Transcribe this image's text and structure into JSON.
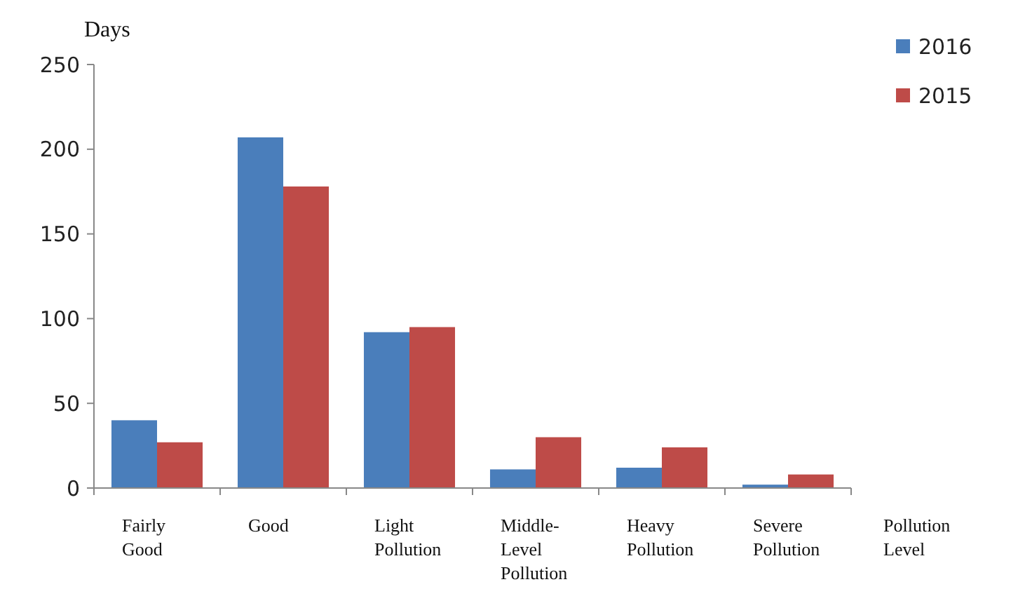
{
  "chart_data": {
    "type": "bar",
    "ylabel": "Days",
    "xlabel": "Pollution Level",
    "categories": [
      "Fairly Good",
      "Good",
      "Light Pollution",
      "Middle-Level Pollution",
      "Heavy Pollution",
      "Severe Pollution"
    ],
    "series": [
      {
        "name": "2016",
        "color": "#4a7ebb",
        "values": [
          40,
          207,
          92,
          11,
          12,
          2
        ]
      },
      {
        "name": "2015",
        "color": "#be4b48",
        "values": [
          27,
          178,
          95,
          30,
          24,
          8
        ]
      }
    ],
    "ylim": [
      0,
      250
    ],
    "yticks": [
      0,
      50,
      100,
      150,
      200,
      250
    ],
    "legend": "top right"
  }
}
